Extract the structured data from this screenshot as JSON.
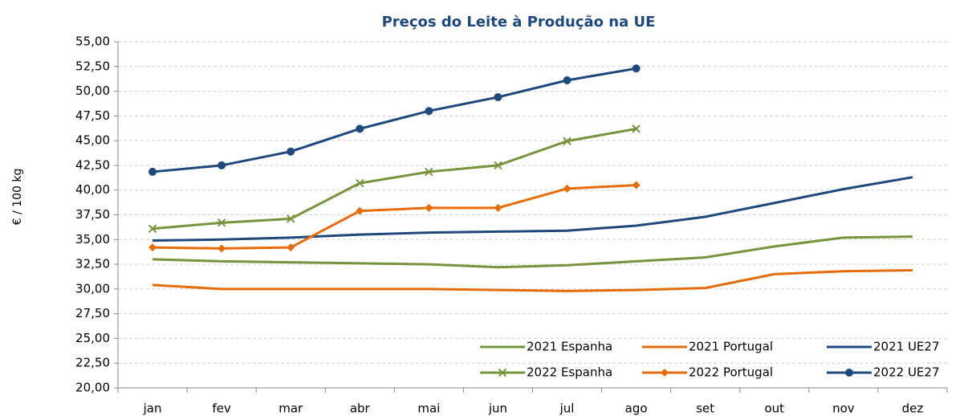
{
  "chart_data": {
    "type": "line",
    "title": "Preços do Leite à Produção na UE",
    "y_label": "€ / 100 kg",
    "categories": [
      "jan",
      "fev",
      "mar",
      "abr",
      "mai",
      "jun",
      "jul",
      "ago",
      "set",
      "out",
      "nov",
      "dez"
    ],
    "ylim": [
      20,
      55
    ],
    "yticks": [
      {
        "value": 20,
        "label": "20,00"
      },
      {
        "value": 22.5,
        "label": "22,50"
      },
      {
        "value": 25,
        "label": "25,00"
      },
      {
        "value": 27.5,
        "label": "27,50"
      },
      {
        "value": 30,
        "label": "30,00"
      },
      {
        "value": 32.5,
        "label": "32,50"
      },
      {
        "value": 35,
        "label": "35,00"
      },
      {
        "value": 37.5,
        "label": "37,50"
      },
      {
        "value": 40,
        "label": "40,00"
      },
      {
        "value": 42.5,
        "label": "42,50"
      },
      {
        "value": 45,
        "label": "45,00"
      },
      {
        "value": 47.5,
        "label": "47,50"
      },
      {
        "value": 50,
        "label": "50,00"
      },
      {
        "value": 52.5,
        "label": "52,50"
      },
      {
        "value": 55,
        "label": "55,00"
      }
    ],
    "grid": true,
    "legend": "lower right",
    "series": [
      {
        "name": "2021 Espanha",
        "color": "#77933c",
        "marker": "none",
        "values": [
          33.0,
          32.8,
          32.7,
          32.6,
          32.5,
          32.2,
          32.4,
          32.8,
          33.2,
          34.3,
          35.2,
          35.3
        ]
      },
      {
        "name": "2021 Portugal",
        "color": "#e46c0a",
        "marker": "none",
        "values": [
          30.4,
          30.0,
          30.0,
          30.0,
          30.0,
          29.9,
          29.8,
          29.9,
          30.1,
          31.5,
          31.8,
          31.9
        ]
      },
      {
        "name": "2021 UE27",
        "color": "#1f497d",
        "marker": "none",
        "values": [
          34.9,
          35.0,
          35.2,
          35.5,
          35.7,
          35.8,
          35.9,
          36.4,
          37.3,
          38.7,
          40.1,
          41.3
        ]
      },
      {
        "name": "2022 Espanha",
        "color": "#77933c",
        "marker": "x",
        "values": [
          36.1,
          36.7,
          37.1,
          40.7,
          41.85,
          42.5,
          44.95,
          46.2,
          null,
          null,
          null,
          null
        ]
      },
      {
        "name": "2022 Portugal",
        "color": "#e46c0a",
        "marker": "diamond",
        "values": [
          34.2,
          34.1,
          34.2,
          37.9,
          38.2,
          38.2,
          40.15,
          40.5,
          null,
          null,
          null,
          null
        ]
      },
      {
        "name": "2022 UE27",
        "color": "#1f497d",
        "marker": "circle",
        "values": [
          41.85,
          42.5,
          43.9,
          46.2,
          48.0,
          49.4,
          51.1,
          52.3,
          null,
          null,
          null,
          null
        ]
      }
    ]
  }
}
